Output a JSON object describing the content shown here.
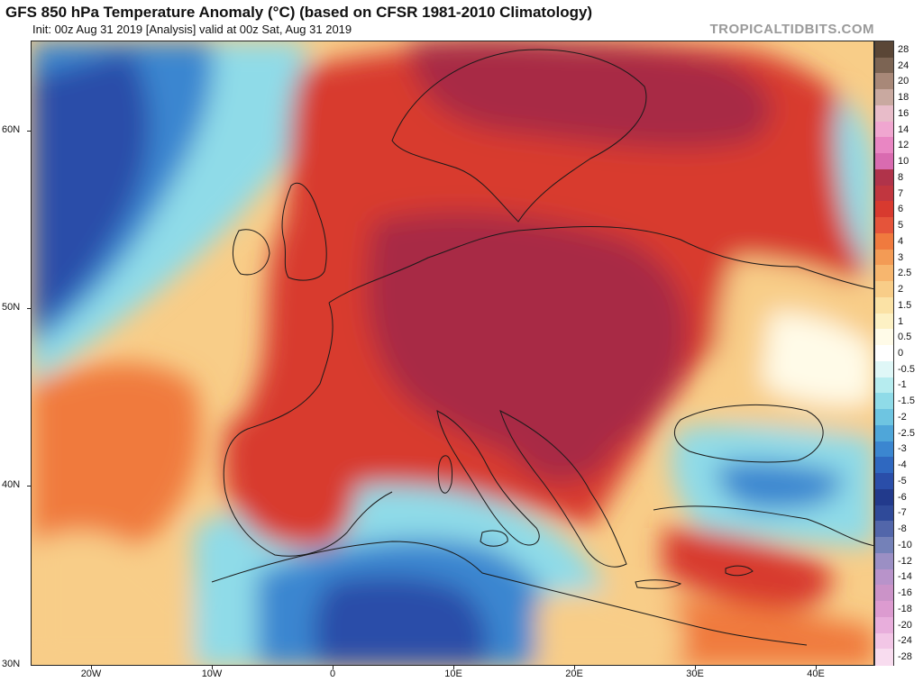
{
  "header": {
    "title": "GFS 850 hPa Temperature Anomaly (°C) (based on CFSR 1981-2010 Climatology)",
    "subtitle": "Init: 00z Aug 31 2019   [Analysis]   valid at 00z Sat, Aug 31 2019",
    "credit": "TROPICALTIDBITS.COM"
  },
  "axes": {
    "lat_labels": [
      "60N",
      "50N",
      "40N",
      "30N"
    ],
    "lon_labels": [
      "20W",
      "10W",
      "0",
      "10E",
      "20E",
      "30E",
      "40E"
    ]
  },
  "colorbar": {
    "labels": [
      "28",
      "24",
      "20",
      "18",
      "16",
      "14",
      "12",
      "10",
      "8",
      "7",
      "6",
      "5",
      "4",
      "3",
      "2.5",
      "2",
      "1.5",
      "1",
      "0.5",
      "0",
      "-0.5",
      "-1",
      "-1.5",
      "-2",
      "-2.5",
      "-3",
      "-4",
      "-5",
      "-6",
      "-7",
      "-8",
      "-10",
      "-12",
      "-14",
      "-16",
      "-18",
      "-20",
      "-24",
      "-28"
    ],
    "colors": [
      "#5a4636",
      "#7c6453",
      "#a88878",
      "#c9a9a0",
      "#e8bcc9",
      "#f0a6d0",
      "#e986c3",
      "#d96bb0",
      "#b0334a",
      "#c1363f",
      "#d83a2f",
      "#e5543a",
      "#f07a3e",
      "#f39b55",
      "#f7b66e",
      "#f8cd88",
      "#fbe2a5",
      "#fdf1c4",
      "#fffbe8",
      "#ffffff",
      "#dff7f7",
      "#b6ecef",
      "#8fdbe8",
      "#6ec5e1",
      "#4fa6d9",
      "#3b86d0",
      "#2f68c0",
      "#2a4ea9",
      "#223a8c",
      "#2f4a99",
      "#5266aa",
      "#7481b8",
      "#9b8fc4",
      "#b893ca",
      "#cb93c8",
      "#dc9bd0",
      "#e8aedc",
      "#f2c6e6",
      "#f8dcef"
    ]
  },
  "map_colors": {
    "deep_warm": "#a82a45",
    "warm": "#d83a2f",
    "mild": "#f07a3e",
    "light": "#f8cd88",
    "neutral": "#fffbe8",
    "cool": "#8fdbe8",
    "cold": "#3b86d0",
    "deep_cold": "#2a4ea9"
  }
}
